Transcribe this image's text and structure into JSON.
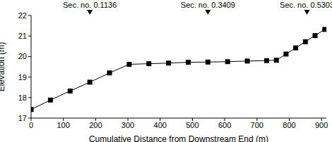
{
  "chart_data": {
    "type": "line",
    "xlabel": "Cumulative Distance from Downstream End (m)",
    "ylabel": "Elevation (m)",
    "x": [
      0,
      60,
      121,
      182,
      243,
      304,
      365,
      426,
      487,
      548,
      609,
      670,
      730,
      760,
      790,
      820,
      850,
      880,
      910
    ],
    "values": [
      17.42,
      17.88,
      18.32,
      18.75,
      19.2,
      19.62,
      19.65,
      19.68,
      19.72,
      19.73,
      19.75,
      19.78,
      19.8,
      19.82,
      20.12,
      20.42,
      20.72,
      21.02,
      21.32
    ],
    "color": "#000000",
    "marker": "square",
    "xlim": [
      0,
      915
    ],
    "xticks": [
      0,
      100,
      200,
      300,
      400,
      500,
      600,
      700,
      800,
      900
    ],
    "ylim": [
      17,
      22
    ],
    "yticks": [
      17,
      18,
      19,
      20,
      21,
      22
    ],
    "annotations": [
      {
        "text": "Sec. no. 0.1136",
        "x": 182
      },
      {
        "text": "Sec. no. 0.3409",
        "x": 548
      },
      {
        "text": "Sec. no. 0.5303",
        "x": 855
      }
    ]
  }
}
